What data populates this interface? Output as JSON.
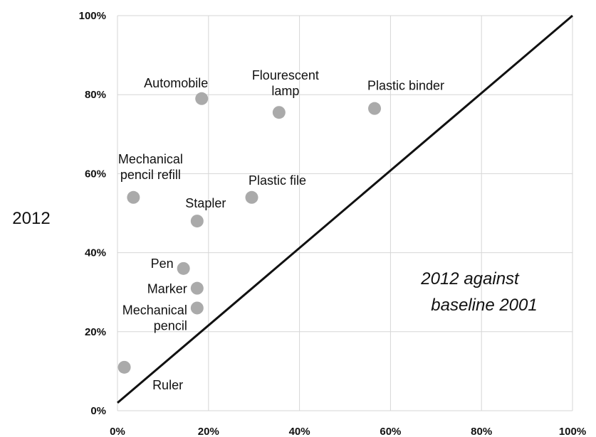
{
  "chart_data": {
    "type": "scatter",
    "title": "",
    "xlabel": "",
    "ylabel": "2012",
    "annotation": [
      "2012 against",
      "baseline 2001"
    ],
    "xlim": [
      0,
      100
    ],
    "ylim": [
      0,
      100
    ],
    "x_ticks": [
      "0%",
      "20%",
      "40%",
      "60%",
      "80%",
      "100%"
    ],
    "y_ticks": [
      "0%",
      "20%",
      "40%",
      "60%",
      "80%",
      "100%"
    ],
    "grid": true,
    "reference_line": {
      "from": [
        0,
        2
      ],
      "to": [
        100,
        100
      ]
    },
    "marker_color": "#aaaaaa",
    "points": [
      {
        "label": [
          "Automobile"
        ],
        "x": 18.5,
        "y": 79
      },
      {
        "label": [
          "Flourescent",
          "lamp"
        ],
        "x": 35.5,
        "y": 75.5
      },
      {
        "label": [
          "Plastic binder"
        ],
        "x": 56.5,
        "y": 76.5
      },
      {
        "label": [
          "Mechanical",
          "pencil refill"
        ],
        "x": 3.5,
        "y": 54
      },
      {
        "label": [
          "Plastic file"
        ],
        "x": 29.5,
        "y": 54
      },
      {
        "label": [
          "Stapler"
        ],
        "x": 17.5,
        "y": 48
      },
      {
        "label": [
          "Pen"
        ],
        "x": 14.5,
        "y": 36
      },
      {
        "label": [
          "Marker"
        ],
        "x": 17.5,
        "y": 31
      },
      {
        "label": [
          "Mechanical",
          "pencil"
        ],
        "x": 17.5,
        "y": 26
      },
      {
        "label": [
          "Ruler"
        ],
        "x": 1.5,
        "y": 11
      }
    ]
  }
}
